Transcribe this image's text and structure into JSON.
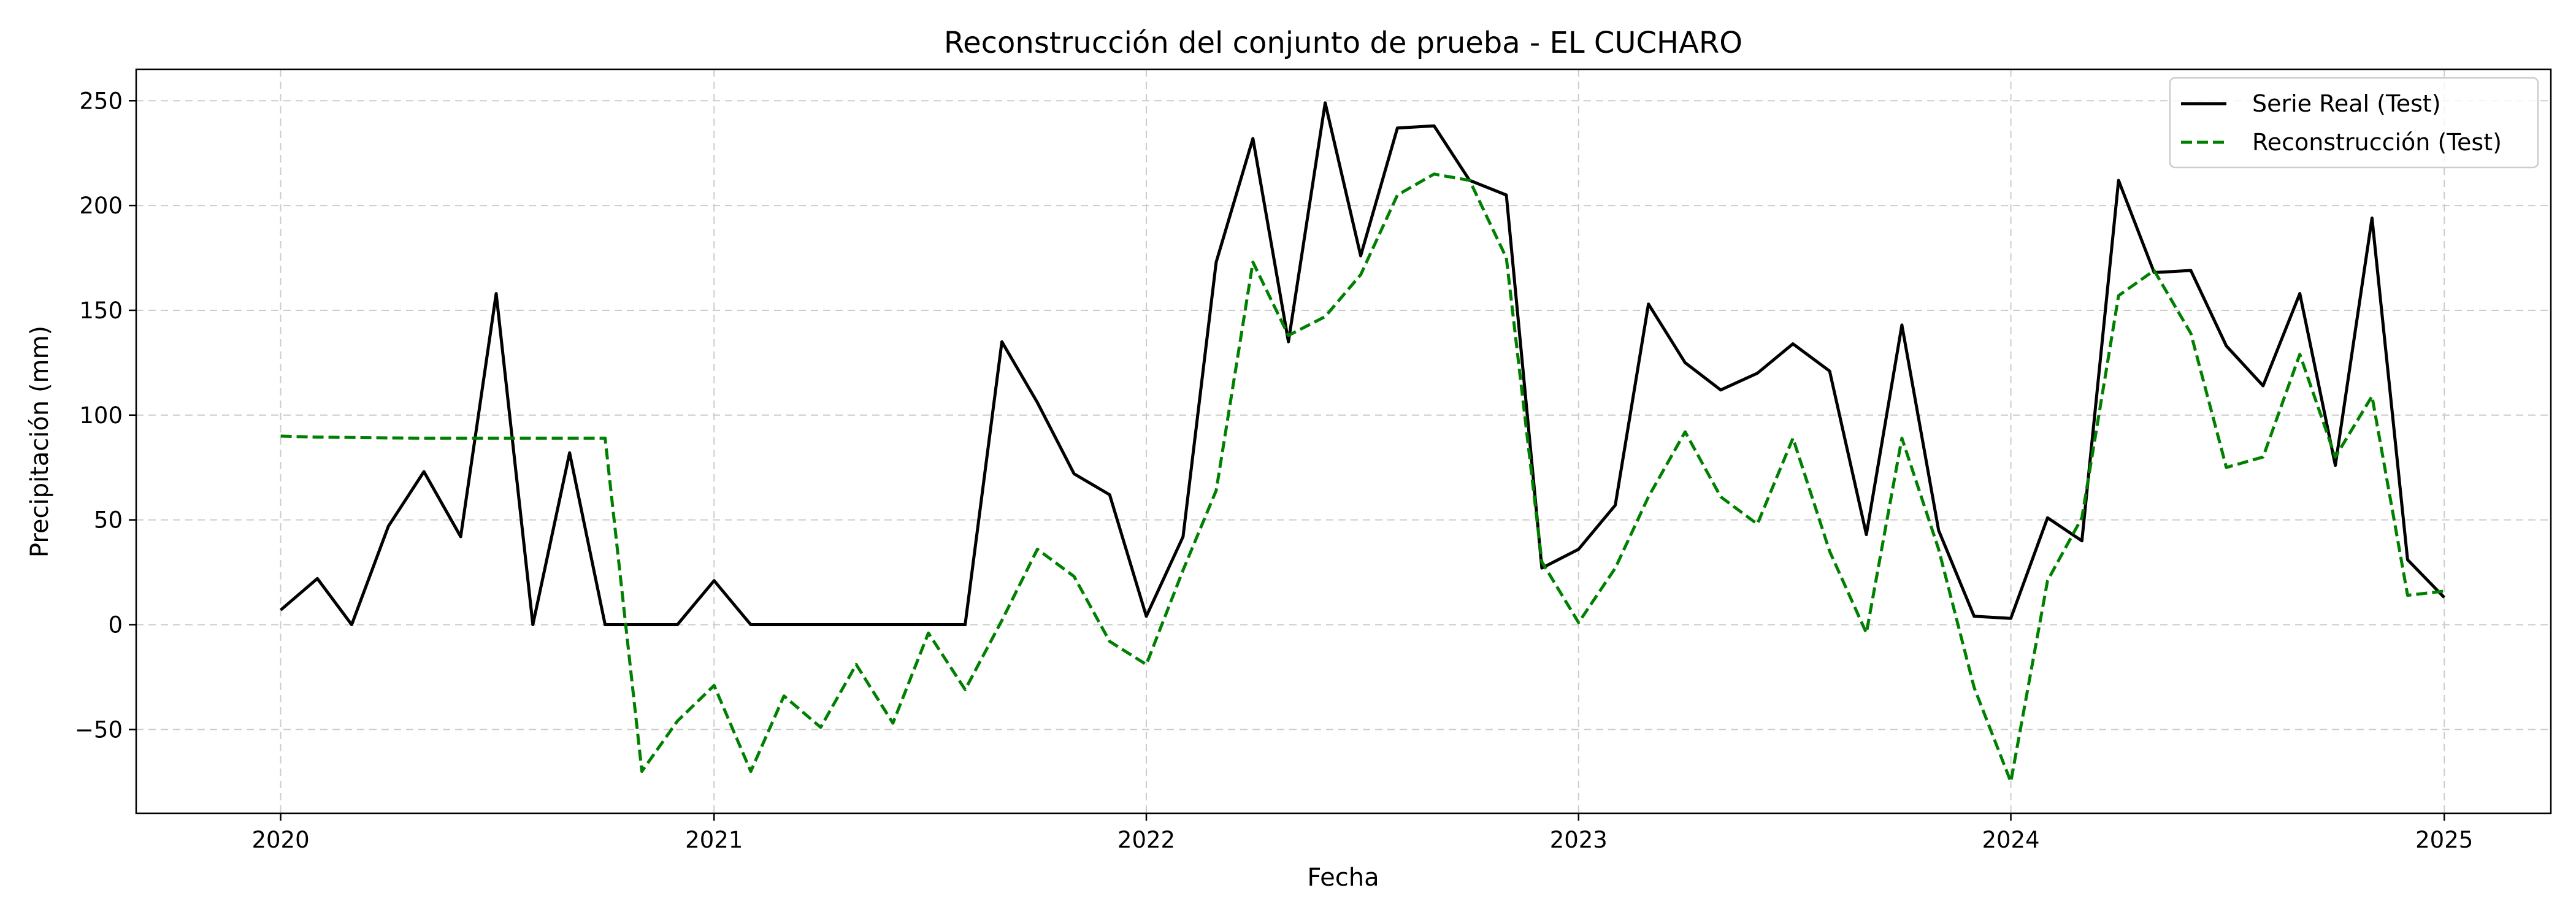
{
  "chart_data": {
    "type": "line",
    "title": "Reconstrucción del conjunto de prueba - EL CUCHARO",
    "xlabel": "Fecha",
    "ylabel": "Precipitación (mm)",
    "xlim": [
      "2019-09-01",
      "2025-04-01"
    ],
    "ylim": [
      -90,
      265
    ],
    "x_ticks": [
      "2020-01-01",
      "2021-01-01",
      "2022-01-01",
      "2023-01-01",
      "2024-01-01",
      "2025-01-01"
    ],
    "x_tick_labels": [
      "2020",
      "2021",
      "2022",
      "2023",
      "2024",
      "2025"
    ],
    "y_ticks": [
      -50,
      0,
      50,
      100,
      150,
      200,
      250
    ],
    "grid": true,
    "legend": "top-right",
    "x": [
      "2020-01-01",
      "2020-02-01",
      "2020-03-01",
      "2020-04-01",
      "2020-05-01",
      "2020-06-01",
      "2020-07-01",
      "2020-08-01",
      "2020-09-01",
      "2020-10-01",
      "2020-11-01",
      "2020-12-01",
      "2021-01-01",
      "2021-02-01",
      "2021-03-01",
      "2021-04-01",
      "2021-05-01",
      "2021-06-01",
      "2021-07-01",
      "2021-08-01",
      "2021-09-01",
      "2021-10-01",
      "2021-11-01",
      "2021-12-01",
      "2022-01-01",
      "2022-02-01",
      "2022-03-01",
      "2022-04-01",
      "2022-05-01",
      "2022-06-01",
      "2022-07-01",
      "2022-08-01",
      "2022-09-01",
      "2022-10-01",
      "2022-11-01",
      "2022-12-01",
      "2023-01-01",
      "2023-02-01",
      "2023-03-01",
      "2023-04-01",
      "2023-05-01",
      "2023-06-01",
      "2023-07-01",
      "2023-08-01",
      "2023-09-01",
      "2023-10-01",
      "2023-11-01",
      "2023-12-01",
      "2024-01-01",
      "2024-02-01",
      "2024-03-01",
      "2024-04-01",
      "2024-05-01",
      "2024-06-01",
      "2024-07-01",
      "2024-08-01",
      "2024-09-01",
      "2024-10-01",
      "2024-11-01",
      "2024-12-01",
      "2025-01-01"
    ],
    "series": [
      {
        "name": "Serie Real (Test)",
        "color": "#000000",
        "dash": "solid",
        "values": [
          7,
          22,
          0,
          47,
          73,
          42,
          158,
          0,
          82,
          0,
          0,
          0,
          21,
          0,
          0,
          0,
          0,
          0,
          0,
          0,
          135,
          106,
          72,
          62,
          4,
          42,
          173,
          232,
          135,
          249,
          176,
          237,
          238,
          212,
          205,
          27,
          36,
          57,
          153,
          125,
          112,
          120,
          134,
          121,
          43,
          143,
          45,
          4,
          3,
          51,
          40,
          212,
          168,
          169,
          133,
          114,
          158,
          76,
          194,
          31,
          13
        ]
      },
      {
        "name": "Reconstrucción (Test)",
        "color": "#008000",
        "dash": "dashed",
        "values": [
          90,
          89.5,
          89.3,
          89.1,
          89,
          89,
          89,
          89,
          89,
          89,
          -70,
          -46,
          -29,
          -70,
          -34,
          -49,
          -19,
          -47,
          -4,
          -31,
          2,
          36,
          23,
          -8,
          -19,
          26,
          64,
          173,
          138,
          147,
          167,
          205,
          215,
          212,
          175,
          30,
          1,
          27,
          61,
          92,
          61,
          48,
          89,
          35,
          -4,
          89,
          36,
          -30,
          -75,
          21,
          51,
          157,
          169,
          139,
          75,
          80,
          129,
          80,
          109,
          14,
          16
        ]
      }
    ]
  }
}
